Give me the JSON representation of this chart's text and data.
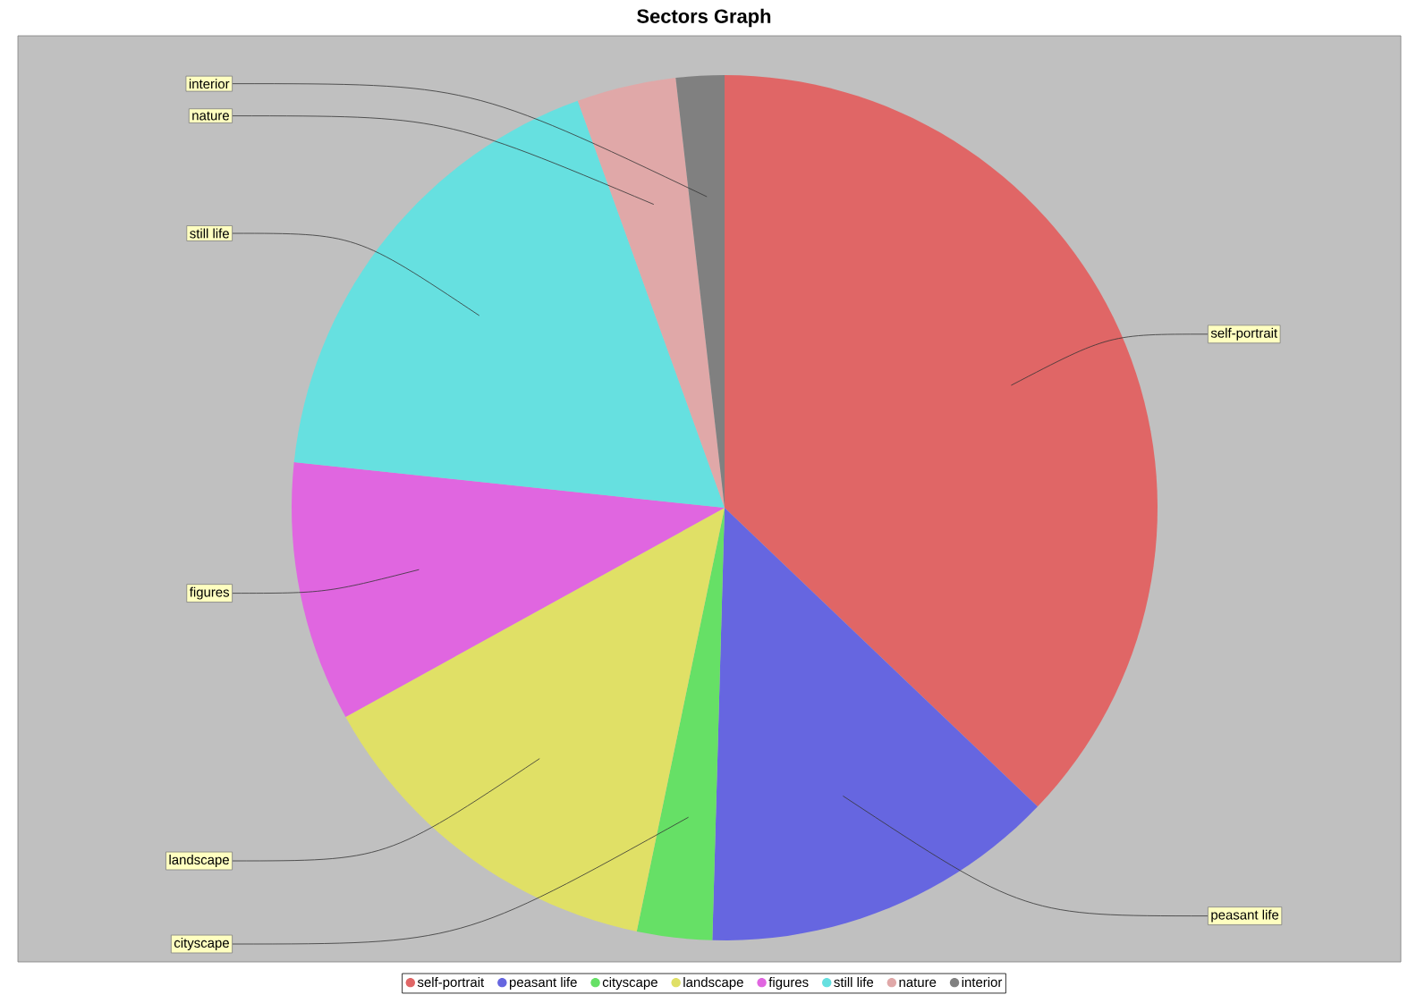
{
  "chart_data": {
    "type": "pie",
    "title": "Sectors Graph",
    "categories": [
      "self-portrait",
      "peasant life",
      "cityscape",
      "landscape",
      "figures",
      "still life",
      "nature",
      "interior"
    ],
    "values": [
      37.1,
      13.3,
      2.8,
      13.7,
      9.7,
      17.8,
      3.7,
      1.8
    ],
    "colors": [
      "#e06666",
      "#6666e0",
      "#66e066",
      "#e0e066",
      "#e066e0",
      "#66e0e0",
      "#e0a8a8",
      "#808080"
    ],
    "legend": "bottom"
  }
}
